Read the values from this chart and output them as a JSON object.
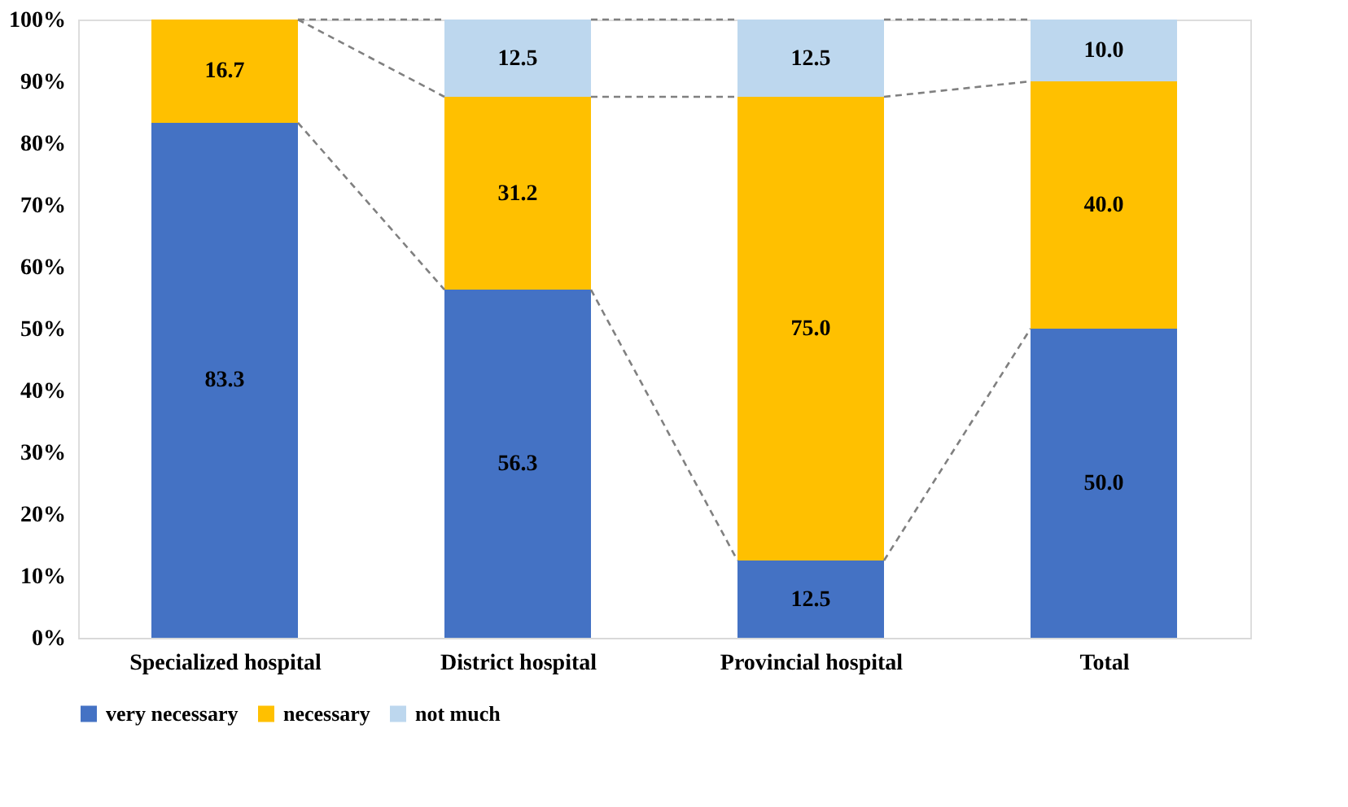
{
  "chart_data": {
    "type": "bar",
    "stacked": true,
    "categories": [
      "Specialized hospital",
      "District hospital",
      "Provincial hospital",
      "Total"
    ],
    "series": [
      {
        "name": "very necessary",
        "color": "#4472c4",
        "values": [
          83.3,
          56.3,
          12.5,
          50.0
        ],
        "value_labels": [
          "83.3",
          "56.3",
          "12.5",
          "50.0"
        ]
      },
      {
        "name": "necessary",
        "color": "#ffc000",
        "values": [
          16.7,
          31.2,
          75.0,
          40.0
        ],
        "value_labels": [
          "16.7",
          "31.2",
          "75.0",
          "40.0"
        ]
      },
      {
        "name": "not much",
        "color": "#bdd7ee",
        "values": [
          null,
          12.5,
          12.5,
          10.0
        ],
        "value_labels": [
          null,
          "12.5",
          "12.5",
          "10.0"
        ]
      }
    ],
    "ylim": [
      0,
      100
    ],
    "yticks": [
      {
        "value": 0,
        "label": "0%"
      },
      {
        "value": 10,
        "label": "10%"
      },
      {
        "value": 20,
        "label": "20%"
      },
      {
        "value": 30,
        "label": "30%"
      },
      {
        "value": 40,
        "label": "40%"
      },
      {
        "value": 50,
        "label": "50%"
      },
      {
        "value": 60,
        "label": "60%"
      },
      {
        "value": 70,
        "label": "70%"
      },
      {
        "value": 80,
        "label": "80%"
      },
      {
        "value": 90,
        "label": "90%"
      },
      {
        "value": 100,
        "label": "100%"
      }
    ],
    "legend": "bottom",
    "grid": false
  }
}
